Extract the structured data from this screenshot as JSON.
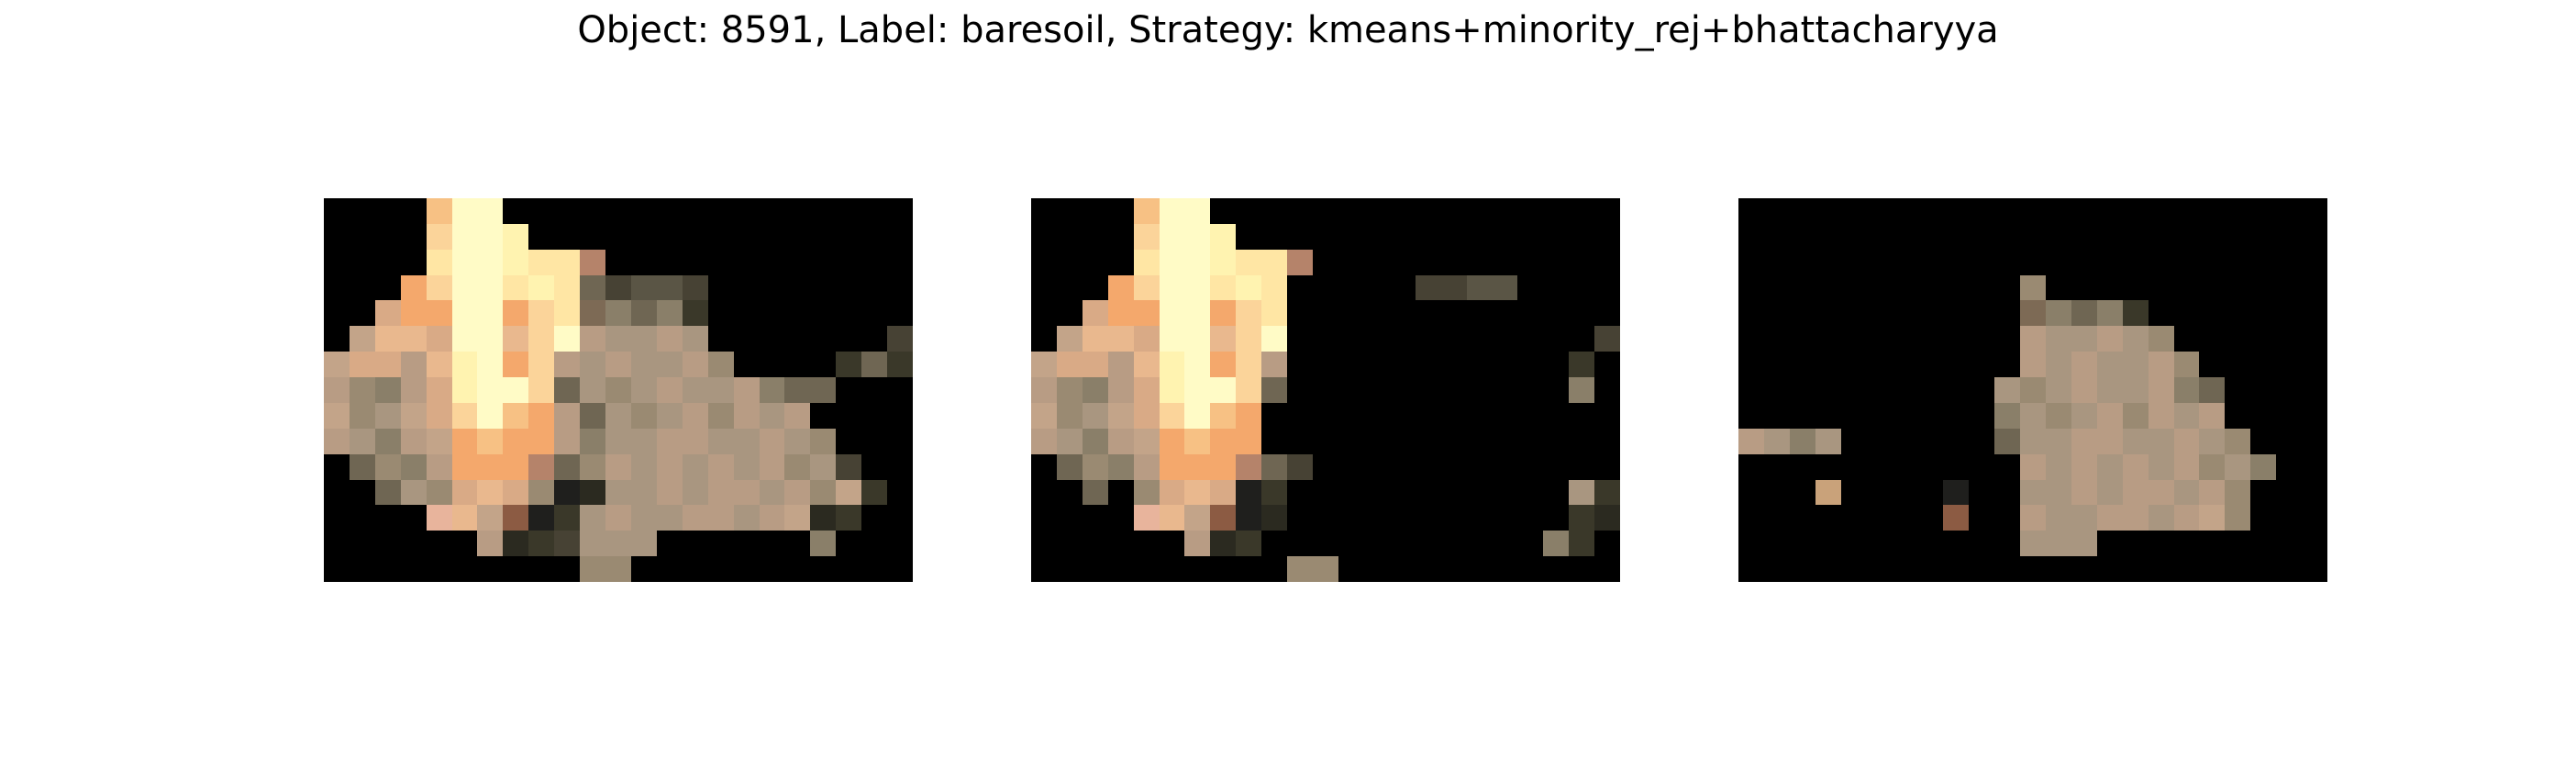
{
  "figure": {
    "title": "Object: 8591, Label: baresoil, Strategy: kmeans+minority_rej+bhattacharyya"
  },
  "image_grid": {
    "columns": 23,
    "rows": 15,
    "background_color": "#000000"
  },
  "palette": {
    "A": "#fffbc6",
    "B": "#fff3b0",
    "C": "#ffe6a4",
    "D": "#fbd49a",
    "E": "#f7c184",
    "F": "#f4a86c",
    "G": "#e9b88e",
    "H": "#d9aa86",
    "I": "#c3a489",
    "J": "#b89c84",
    "K": "#a99680",
    "L": "#9a8a72",
    "M": "#8a7f69",
    "N": "#6f6653",
    "O": "#5a5545",
    "P": "#474234",
    "Q": "#3a3829",
    "R": "#2b2a20",
    "S": "#1f1f1d",
    "T": "#b5836a",
    "U": "#9f7d5f",
    "V": "#8c5b43",
    "W": "#e8b49c",
    "X": "#c9a27a",
    "Y": "#7d6a55",
    "Z": "#a37b5b"
  },
  "panels": [
    {
      "rows": [
        "....EAA................",
        "....DAAB...............",
        "....CAABCCT............",
        "...FDAACBCNPOOP........",
        "..HFFAAFDCYMNMQ........",
        ".IGGHAAGDAJKKJK.......P",
        "IHHJGBAFDJKJKKJL....QNQ",
        "JLMJHBAADNKLKJKKJMNN...",
        "ILKIHDAEFJNKLKJLJKJ....",
        "JKMJIFEFFJMKKJJKKJKL...",
        ".NLMJFFFTNLJKJKJKJLKP..",
        "..NKLHGHLSRKKJKJJKJLIQ.",
        "....WGIVSQKJKKJJKJIRQ..",
        "......JRQPKKK......M...",
        "..........LL..........."
      ]
    },
    {
      "rows": [
        "....EAA................",
        "....DAAB...............",
        "....CAABCCT............",
        "...FDAACBC.....PPOO....",
        "..HFFAAFDC.............",
        ".IGGHAAGDA............P",
        "IHHJGBAFDJ...........Q.",
        "JLMJHBAADN...........M.",
        "ILKIHDAEF..............",
        "JKMJIFEFF..............",
        ".NLMJFFFTNP............",
        "..N.LHGHSQ...........KQ",
        "....WGIVSR...........QR",
        "......JRQ...........MQ.",
        "..........LL..........."
      ]
    },
    {
      "rows": [
        ".......................",
        ".......................",
        ".......................",
        "...........L...........",
        "...........YMNMQ.......",
        "...........JKKJKL......",
        "...........JKJKKJL.....",
        "..........KLKJKKJMN....",
        "..........MKLKJLJKJ....",
        "JKMK......NKKJJKKJKL...",
        "...........JKJKJKJLKM..",
        "...X....S..KKJKJJKJL...",
        "........V..JKKJJKJIL...",
        "...........KKK.........",
        "......................."
      ]
    }
  ]
}
